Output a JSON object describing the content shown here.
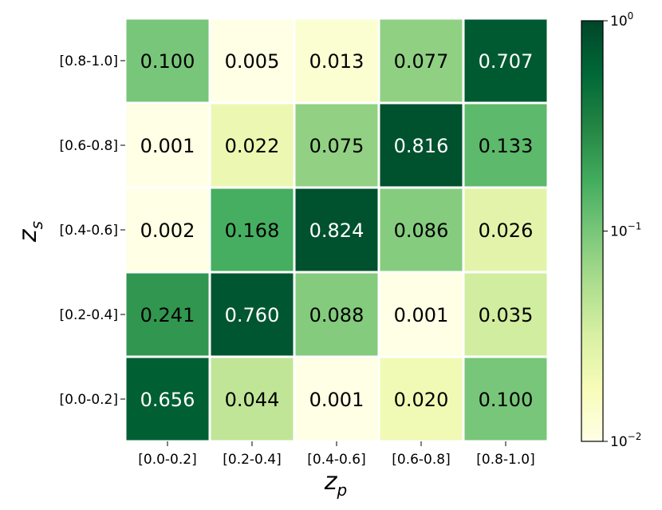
{
  "chart_data": {
    "type": "heatmap",
    "xlabel": "z_p",
    "xlabel_main": "z",
    "xlabel_sub": "p",
    "ylabel": "z_s",
    "ylabel_main": "z",
    "ylabel_sub": "s",
    "x_categories": [
      "[0.0-0.2]",
      "[0.2-0.4]",
      "[0.4-0.6]",
      "[0.6-0.8]",
      "[0.8-1.0]"
    ],
    "y_categories": [
      "[0.8-1.0]",
      "[0.6-0.8]",
      "[0.4-0.6]",
      "[0.2-0.4]",
      "[0.0-0.2]"
    ],
    "values": [
      [
        0.1,
        0.005,
        0.013,
        0.077,
        0.707
      ],
      [
        0.001,
        0.022,
        0.075,
        0.816,
        0.133
      ],
      [
        0.002,
        0.168,
        0.824,
        0.086,
        0.026
      ],
      [
        0.241,
        0.76,
        0.088,
        0.001,
        0.035
      ],
      [
        0.656,
        0.044,
        0.001,
        0.02,
        0.1
      ]
    ],
    "value_labels": [
      [
        "0.100",
        "0.005",
        "0.013",
        "0.077",
        "0.707"
      ],
      [
        "0.001",
        "0.022",
        "0.075",
        "0.816",
        "0.133"
      ],
      [
        "0.002",
        "0.168",
        "0.824",
        "0.086",
        "0.026"
      ],
      [
        "0.241",
        "0.760",
        "0.088",
        "0.001",
        "0.035"
      ],
      [
        "0.656",
        "0.044",
        "0.001",
        "0.020",
        "0.100"
      ]
    ],
    "colorbar": {
      "scale": "log",
      "vmin": 0.01,
      "vmax": 1,
      "colormap": "YlGn",
      "ticks": [
        {
          "value": 1,
          "base": "10",
          "exp": "0"
        },
        {
          "value": 0.1,
          "base": "10",
          "exp": "−1"
        },
        {
          "value": 0.01,
          "base": "10",
          "exp": "−2"
        }
      ]
    },
    "grid": false,
    "cell_border_color": "#ffffff"
  }
}
